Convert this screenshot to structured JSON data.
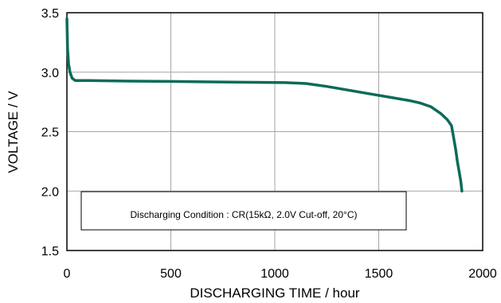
{
  "chart_data": {
    "type": "line",
    "xlabel": "DISCHARGING TIME / hour",
    "ylabel": "VOLTAGE / V",
    "xlim": [
      0,
      2000
    ],
    "ylim": [
      1.5,
      3.5
    ],
    "x_ticks": [
      "0",
      "500",
      "1000",
      "1500",
      "2000"
    ],
    "y_ticks": [
      "1.5",
      "2.0",
      "2.5",
      "3.0",
      "3.5"
    ],
    "grid": true,
    "series": [
      {
        "color": "#0b6b58",
        "points": [
          [
            0,
            3.45
          ],
          [
            3,
            3.2
          ],
          [
            8,
            3.07
          ],
          [
            15,
            3.0
          ],
          [
            25,
            2.95
          ],
          [
            40,
            2.93
          ],
          [
            100,
            2.93
          ],
          [
            300,
            2.925
          ],
          [
            500,
            2.922
          ],
          [
            700,
            2.918
          ],
          [
            900,
            2.915
          ],
          [
            1050,
            2.912
          ],
          [
            1150,
            2.905
          ],
          [
            1250,
            2.88
          ],
          [
            1350,
            2.85
          ],
          [
            1450,
            2.82
          ],
          [
            1550,
            2.79
          ],
          [
            1650,
            2.76
          ],
          [
            1700,
            2.74
          ],
          [
            1750,
            2.71
          ],
          [
            1800,
            2.65
          ],
          [
            1830,
            2.6
          ],
          [
            1850,
            2.55
          ],
          [
            1860,
            2.45
          ],
          [
            1870,
            2.35
          ],
          [
            1878,
            2.25
          ],
          [
            1888,
            2.15
          ],
          [
            1895,
            2.08
          ],
          [
            1900,
            2.0
          ]
        ]
      }
    ],
    "annotation": "Discharging Condition : CR(15kΩ, 2.0V Cut-off, 20°C)"
  }
}
